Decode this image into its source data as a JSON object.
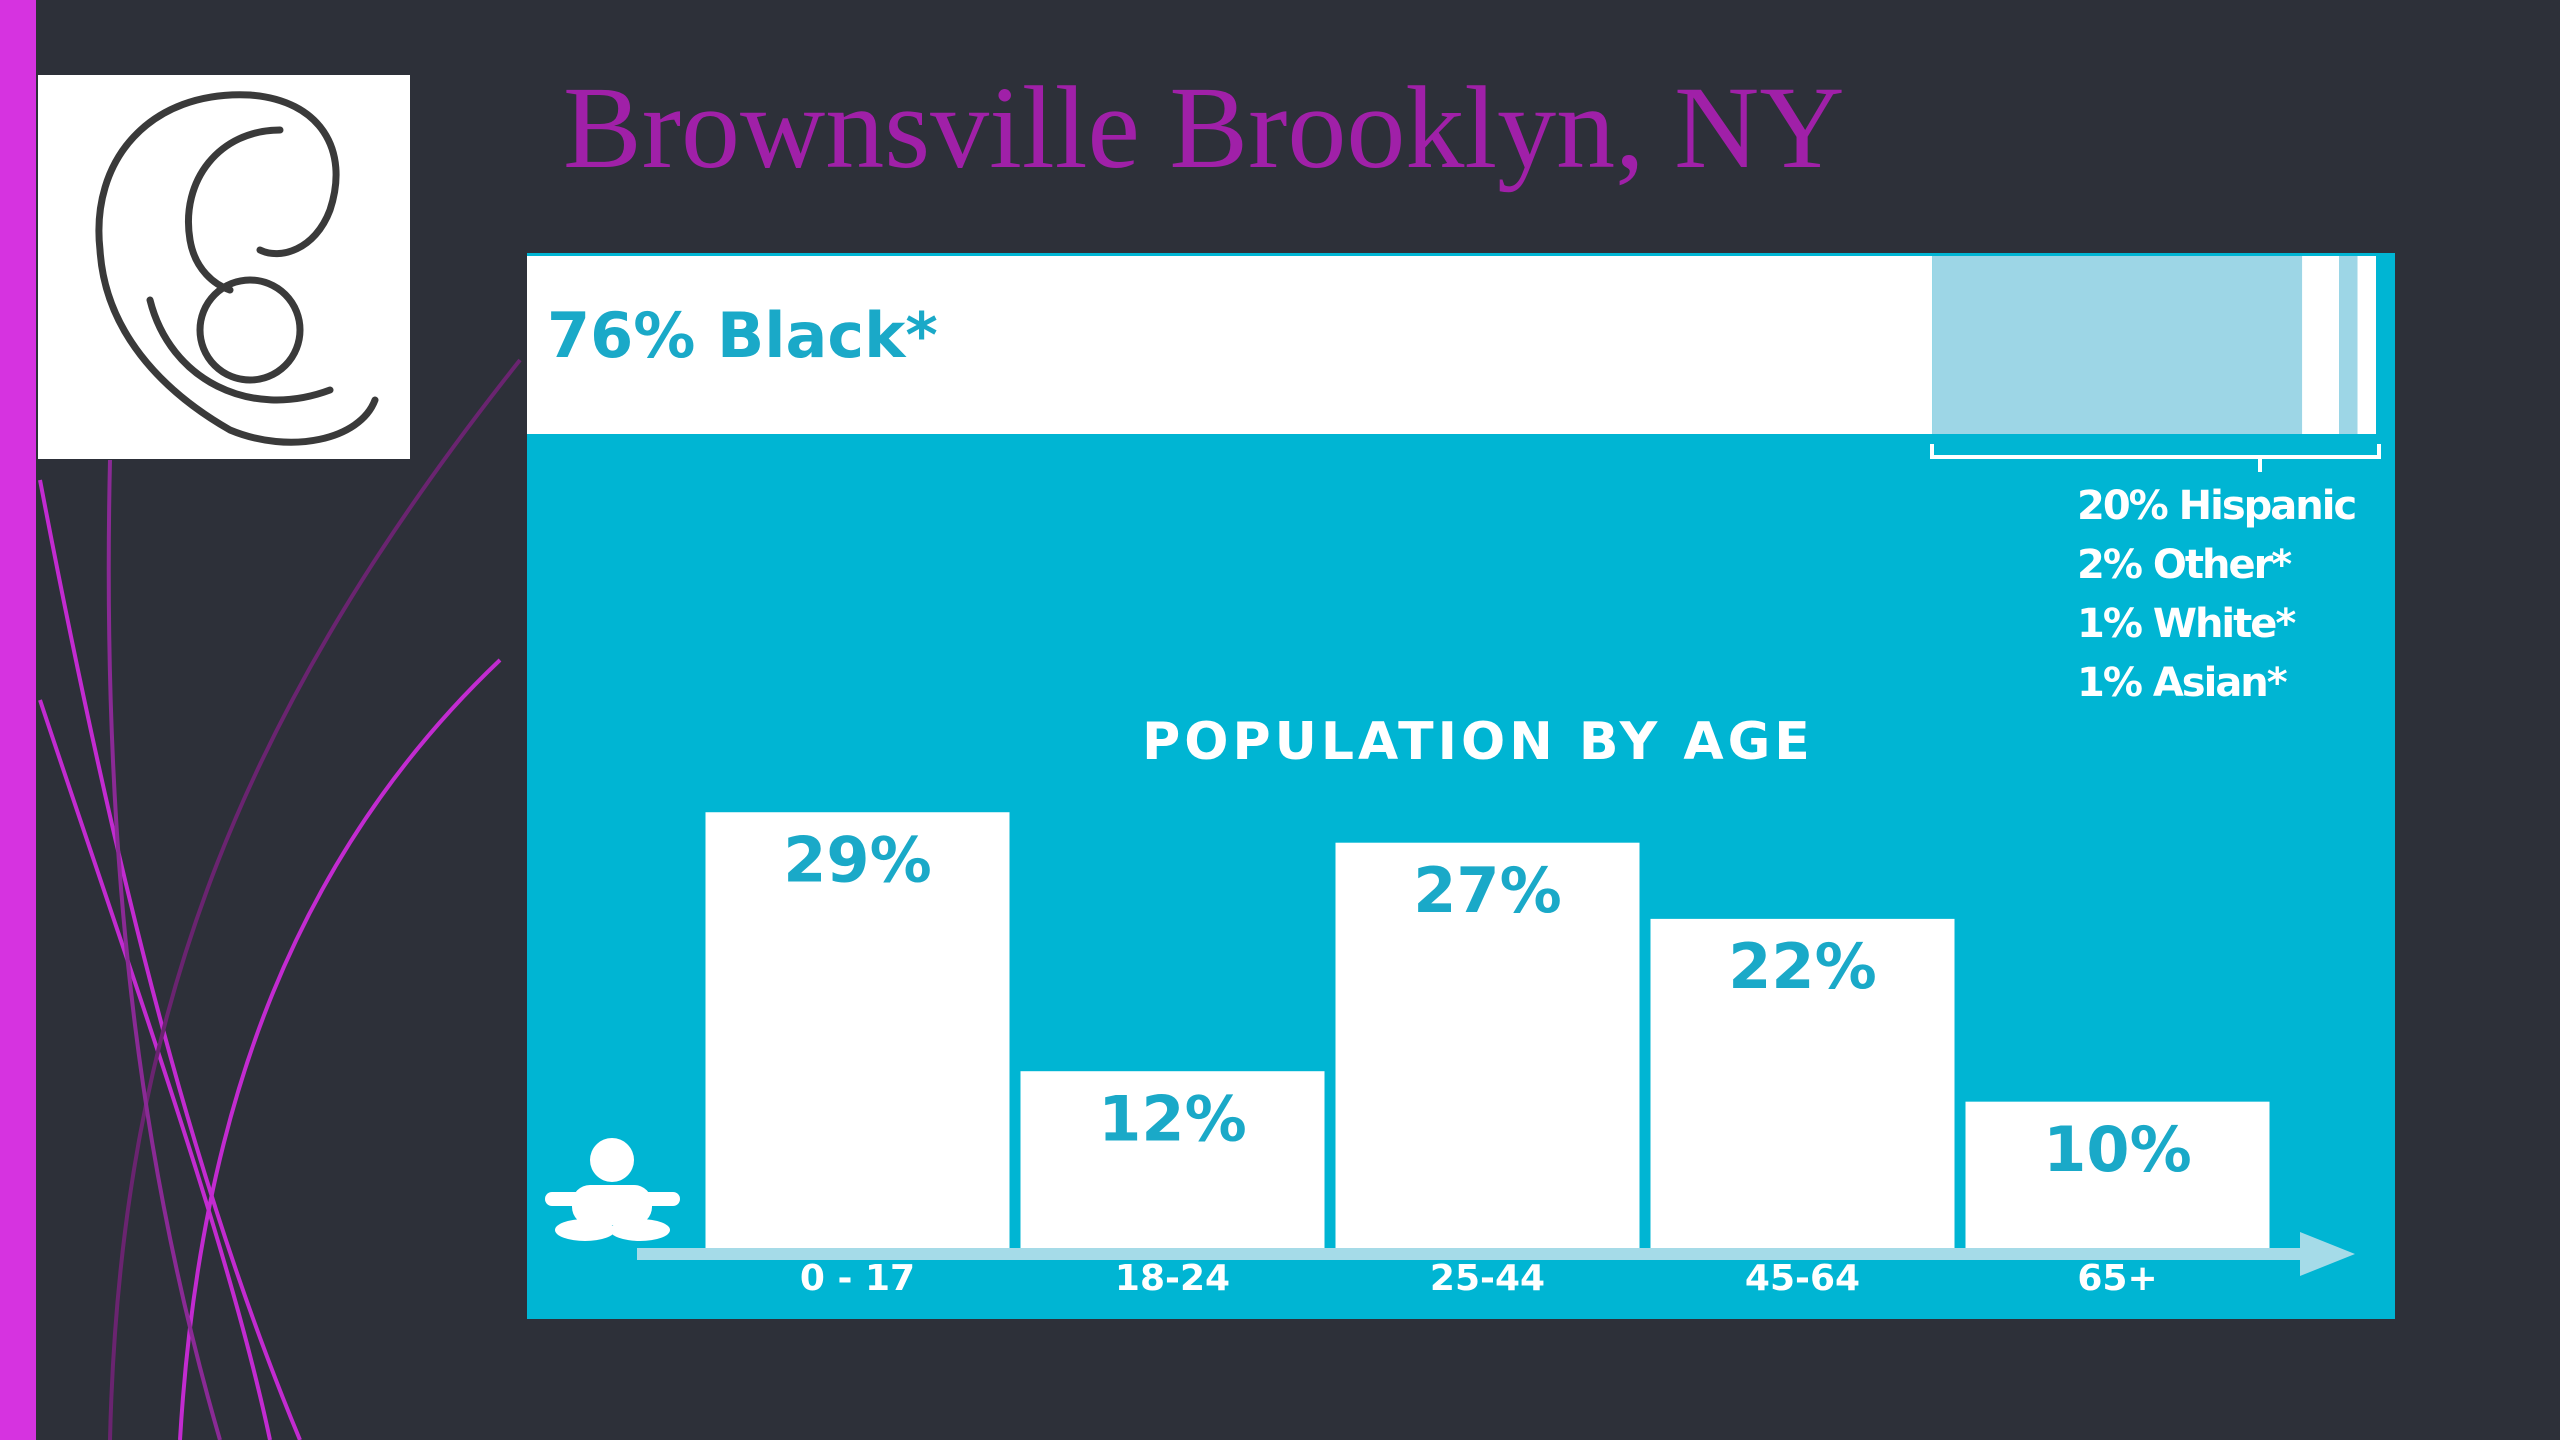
{
  "title": "Brownsville Brooklyn, NY",
  "chart_data": [
    {
      "type": "stacked-bar",
      "segments": [
        {
          "label": "76% Black*",
          "value": 76,
          "color": "#ffffff"
        },
        {
          "label": "20% Hispanic",
          "value": 20,
          "color": "#9dd6e6"
        },
        {
          "label": "2% Other*",
          "value": 2,
          "color": "#ffffff"
        },
        {
          "label": "1% White*",
          "value": 1,
          "color": "#9dd6e6"
        },
        {
          "label": "1% Asian*",
          "value": 1,
          "color": "#ffffff"
        }
      ]
    },
    {
      "type": "bar",
      "title": "POPULATION BY AGE",
      "categories": [
        "0 - 17",
        "18-24",
        "25-44",
        "45-64",
        "65+"
      ],
      "values": [
        29,
        12,
        27,
        22,
        10
      ],
      "value_labels": [
        "29%",
        "12%",
        "27%",
        "22%",
        "10%"
      ],
      "color": "#ffffff",
      "ylim": [
        0,
        30
      ]
    }
  ]
}
